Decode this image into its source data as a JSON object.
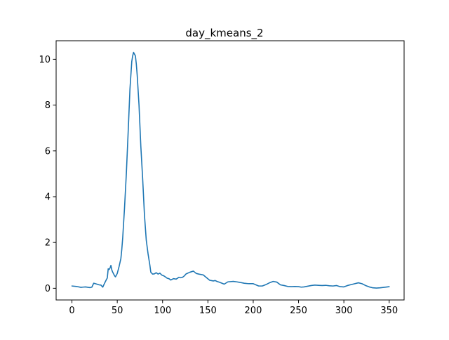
{
  "chart_data": {
    "type": "line",
    "title": "day_kmeans_2",
    "xlabel": "",
    "ylabel": "",
    "xlim": [
      -17.45,
      366.45
    ],
    "ylim": [
      -0.51,
      10.81
    ],
    "xticks": [
      0,
      50,
      100,
      150,
      200,
      250,
      300,
      350
    ],
    "yticks": [
      0,
      2,
      4,
      6,
      8,
      10
    ],
    "xtick_labels": [
      "0",
      "50",
      "100",
      "150",
      "200",
      "250",
      "300",
      "350"
    ],
    "ytick_labels": [
      "0",
      "2",
      "4",
      "6",
      "8",
      "10"
    ],
    "grid": false,
    "legend": false,
    "series": [
      {
        "color": "#1f77b4",
        "x": [
          0,
          5,
          10,
          12,
          15,
          18,
          20,
          22,
          24,
          26,
          30,
          32,
          34,
          36,
          37,
          38,
          39,
          40,
          41,
          42,
          43,
          44,
          45,
          47,
          48,
          50,
          52,
          54,
          55,
          56,
          58,
          60,
          62,
          64,
          66,
          67,
          68,
          70,
          71,
          72,
          74,
          76,
          78,
          80,
          82,
          84,
          86,
          87,
          89,
          91,
          93,
          95,
          97,
          99,
          101,
          103,
          105,
          107,
          109,
          112,
          115,
          118,
          120,
          122,
          124,
          126,
          130,
          134,
          137,
          140,
          145,
          148,
          152,
          156,
          158,
          160,
          163,
          168,
          172,
          178,
          182,
          185,
          190,
          195,
          200,
          203,
          206,
          210,
          214,
          218,
          222,
          226,
          230,
          234,
          238,
          242,
          246,
          250,
          253,
          256,
          260,
          264,
          268,
          272,
          276,
          280,
          284,
          288,
          292,
          296,
          300,
          304,
          308,
          312,
          316,
          320,
          324,
          328,
          332,
          336,
          340,
          344,
          348,
          350
        ],
        "y": [
          0.1,
          0.08,
          0.04,
          0.05,
          0.06,
          0.04,
          0.03,
          0.05,
          0.22,
          0.2,
          0.15,
          0.14,
          0.05,
          0.22,
          0.3,
          0.38,
          0.45,
          0.85,
          0.82,
          0.88,
          1.0,
          0.8,
          0.7,
          0.55,
          0.5,
          0.65,
          0.95,
          1.3,
          1.7,
          2.2,
          3.5,
          5.0,
          6.8,
          8.7,
          9.9,
          10.15,
          10.3,
          10.15,
          9.8,
          9.3,
          8.0,
          6.2,
          4.8,
          3.2,
          2.1,
          1.5,
          1.0,
          0.7,
          0.62,
          0.63,
          0.68,
          0.62,
          0.66,
          0.58,
          0.55,
          0.5,
          0.44,
          0.42,
          0.36,
          0.42,
          0.4,
          0.48,
          0.46,
          0.48,
          0.54,
          0.63,
          0.7,
          0.75,
          0.65,
          0.62,
          0.58,
          0.48,
          0.35,
          0.32,
          0.34,
          0.3,
          0.26,
          0.18,
          0.28,
          0.3,
          0.28,
          0.26,
          0.22,
          0.2,
          0.2,
          0.15,
          0.1,
          0.1,
          0.16,
          0.24,
          0.3,
          0.27,
          0.15,
          0.12,
          0.08,
          0.07,
          0.08,
          0.07,
          0.05,
          0.06,
          0.09,
          0.12,
          0.14,
          0.13,
          0.12,
          0.13,
          0.11,
          0.1,
          0.12,
          0.07,
          0.06,
          0.12,
          0.16,
          0.2,
          0.24,
          0.2,
          0.12,
          0.06,
          0.02,
          0.01,
          0.02,
          0.04,
          0.06,
          0.07
        ]
      }
    ]
  }
}
